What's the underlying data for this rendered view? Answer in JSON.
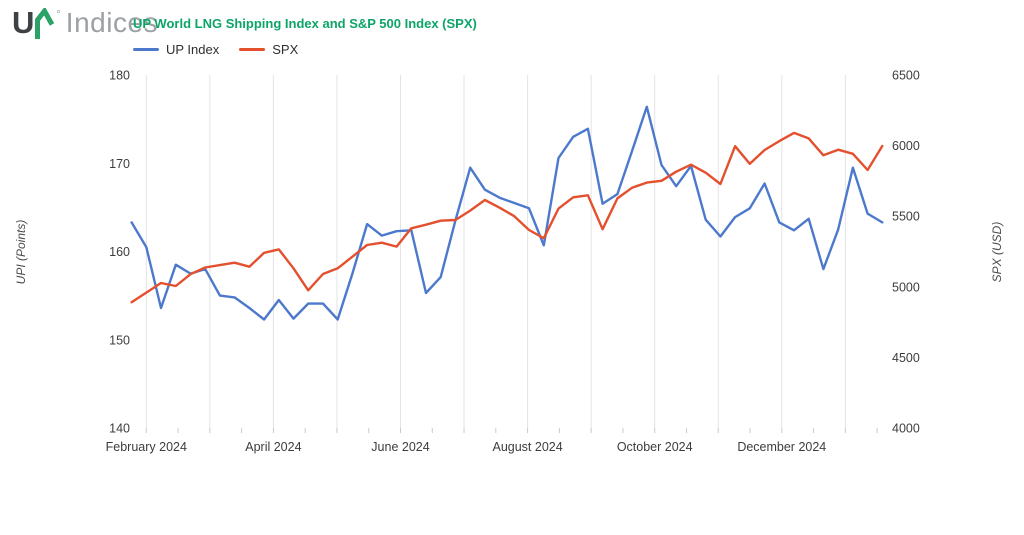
{
  "logo": {
    "mark": "U",
    "degree": "°",
    "text": "Indices",
    "mark_color": "#3e4245",
    "arrow_color": "#2ba266",
    "text_color": "#9ba1a5"
  },
  "header": {
    "title": "UP World LNG Shipping Index and S&P 500 Index (SPX)",
    "title_color": "#0da469"
  },
  "legend": [
    {
      "label": "UP Index",
      "color": "#4d79cc"
    },
    {
      "label": "SPX",
      "color": "#e4502e"
    }
  ],
  "chart_data": {
    "type": "line",
    "title": "UP World LNG Shipping Index and S&P 500 Index (SPX)",
    "x_unit": "weekly points, Feb 2024 - Jan 2025",
    "grid": "vertical monthly gridlines only, no plot border",
    "month_gridlines": [
      "February 2024",
      "",
      "April 2024",
      "",
      "June 2024",
      "",
      "August 2024",
      "",
      "October 2024",
      "",
      "December 2024",
      ""
    ],
    "left_axis": {
      "title": "UPI (Points)",
      "min": 140,
      "max": 180,
      "ticks": [
        180,
        170,
        160,
        150,
        140
      ]
    },
    "right_axis": {
      "title": "SPX (USD)",
      "min": 4000,
      "max": 6500,
      "ticks": [
        6500,
        6000,
        5500,
        5000,
        4500,
        4000
      ]
    },
    "series": [
      {
        "name": "UP Index",
        "axis": "left",
        "color": "#4d79cc",
        "values": [
          163.3,
          160.5,
          153.6,
          158.5,
          157.5,
          158.0,
          155.0,
          154.8,
          153.6,
          152.3,
          154.5,
          152.4,
          154.1,
          154.1,
          152.3,
          157.5,
          163.1,
          161.8,
          162.3,
          162.4,
          155.3,
          157.1,
          163.5,
          169.5,
          167.0,
          166.1,
          165.5,
          164.9,
          160.7,
          170.6,
          173.0,
          173.9,
          165.4,
          166.5,
          171.4,
          176.4,
          169.8,
          167.4,
          169.7,
          163.6,
          161.7,
          163.9,
          164.9,
          167.7,
          163.3,
          162.4,
          163.7,
          158.0,
          162.5,
          169.5,
          164.3,
          163.3
        ]
      },
      {
        "name": "SPX",
        "axis": "right",
        "color": "#e4502e",
        "values": [
          4891,
          4959,
          5027,
          5006,
          5089,
          5137,
          5154,
          5171,
          5142,
          5241,
          5265,
          5131,
          4975,
          5091,
          5131,
          5213,
          5296,
          5312,
          5285,
          5414,
          5440,
          5468,
          5473,
          5540,
          5615,
          5560,
          5500,
          5402,
          5344,
          5554,
          5634,
          5648,
          5408,
          5626,
          5702,
          5738,
          5751,
          5815,
          5865,
          5808,
          5728,
          5996,
          5871,
          5969,
          6032,
          6090,
          6051,
          5931,
          5971,
          5942,
          5827,
          5997
        ]
      }
    ],
    "style": {
      "gridline_color": "#e3e3e3",
      "tick_color": "#c9c9c9",
      "tick_label_color": "#3d3d3d",
      "axis_title_color": "#4a4a4a"
    }
  }
}
